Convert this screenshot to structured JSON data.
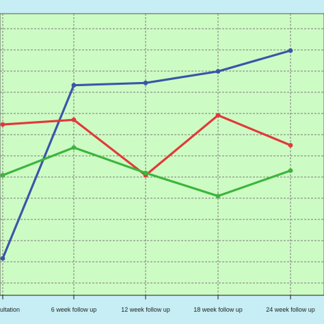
{
  "chart_data": {
    "type": "line",
    "categories": [
      "Consultation",
      "6 week follow up",
      "12 week follow up",
      "18 week follow up",
      "24 week follow up"
    ],
    "ylim": [
      0,
      100
    ],
    "grid": true,
    "title": "",
    "xlabel": "",
    "ylabel": "",
    "series": [
      {
        "color": "#3a56a8",
        "values": [
          10,
          85,
          86,
          91,
          100
        ]
      },
      {
        "color": "#e03a3a",
        "values": [
          68,
          70,
          46,
          72,
          59
        ]
      },
      {
        "color": "#3db53d",
        "values": [
          46,
          58,
          47,
          37,
          48
        ]
      }
    ]
  },
  "colors": {
    "plot_background": "#cdfbc4",
    "outer_background": "#c6eef4",
    "grid_line": "#7a7a7a",
    "axis": "#1a1a1a"
  }
}
